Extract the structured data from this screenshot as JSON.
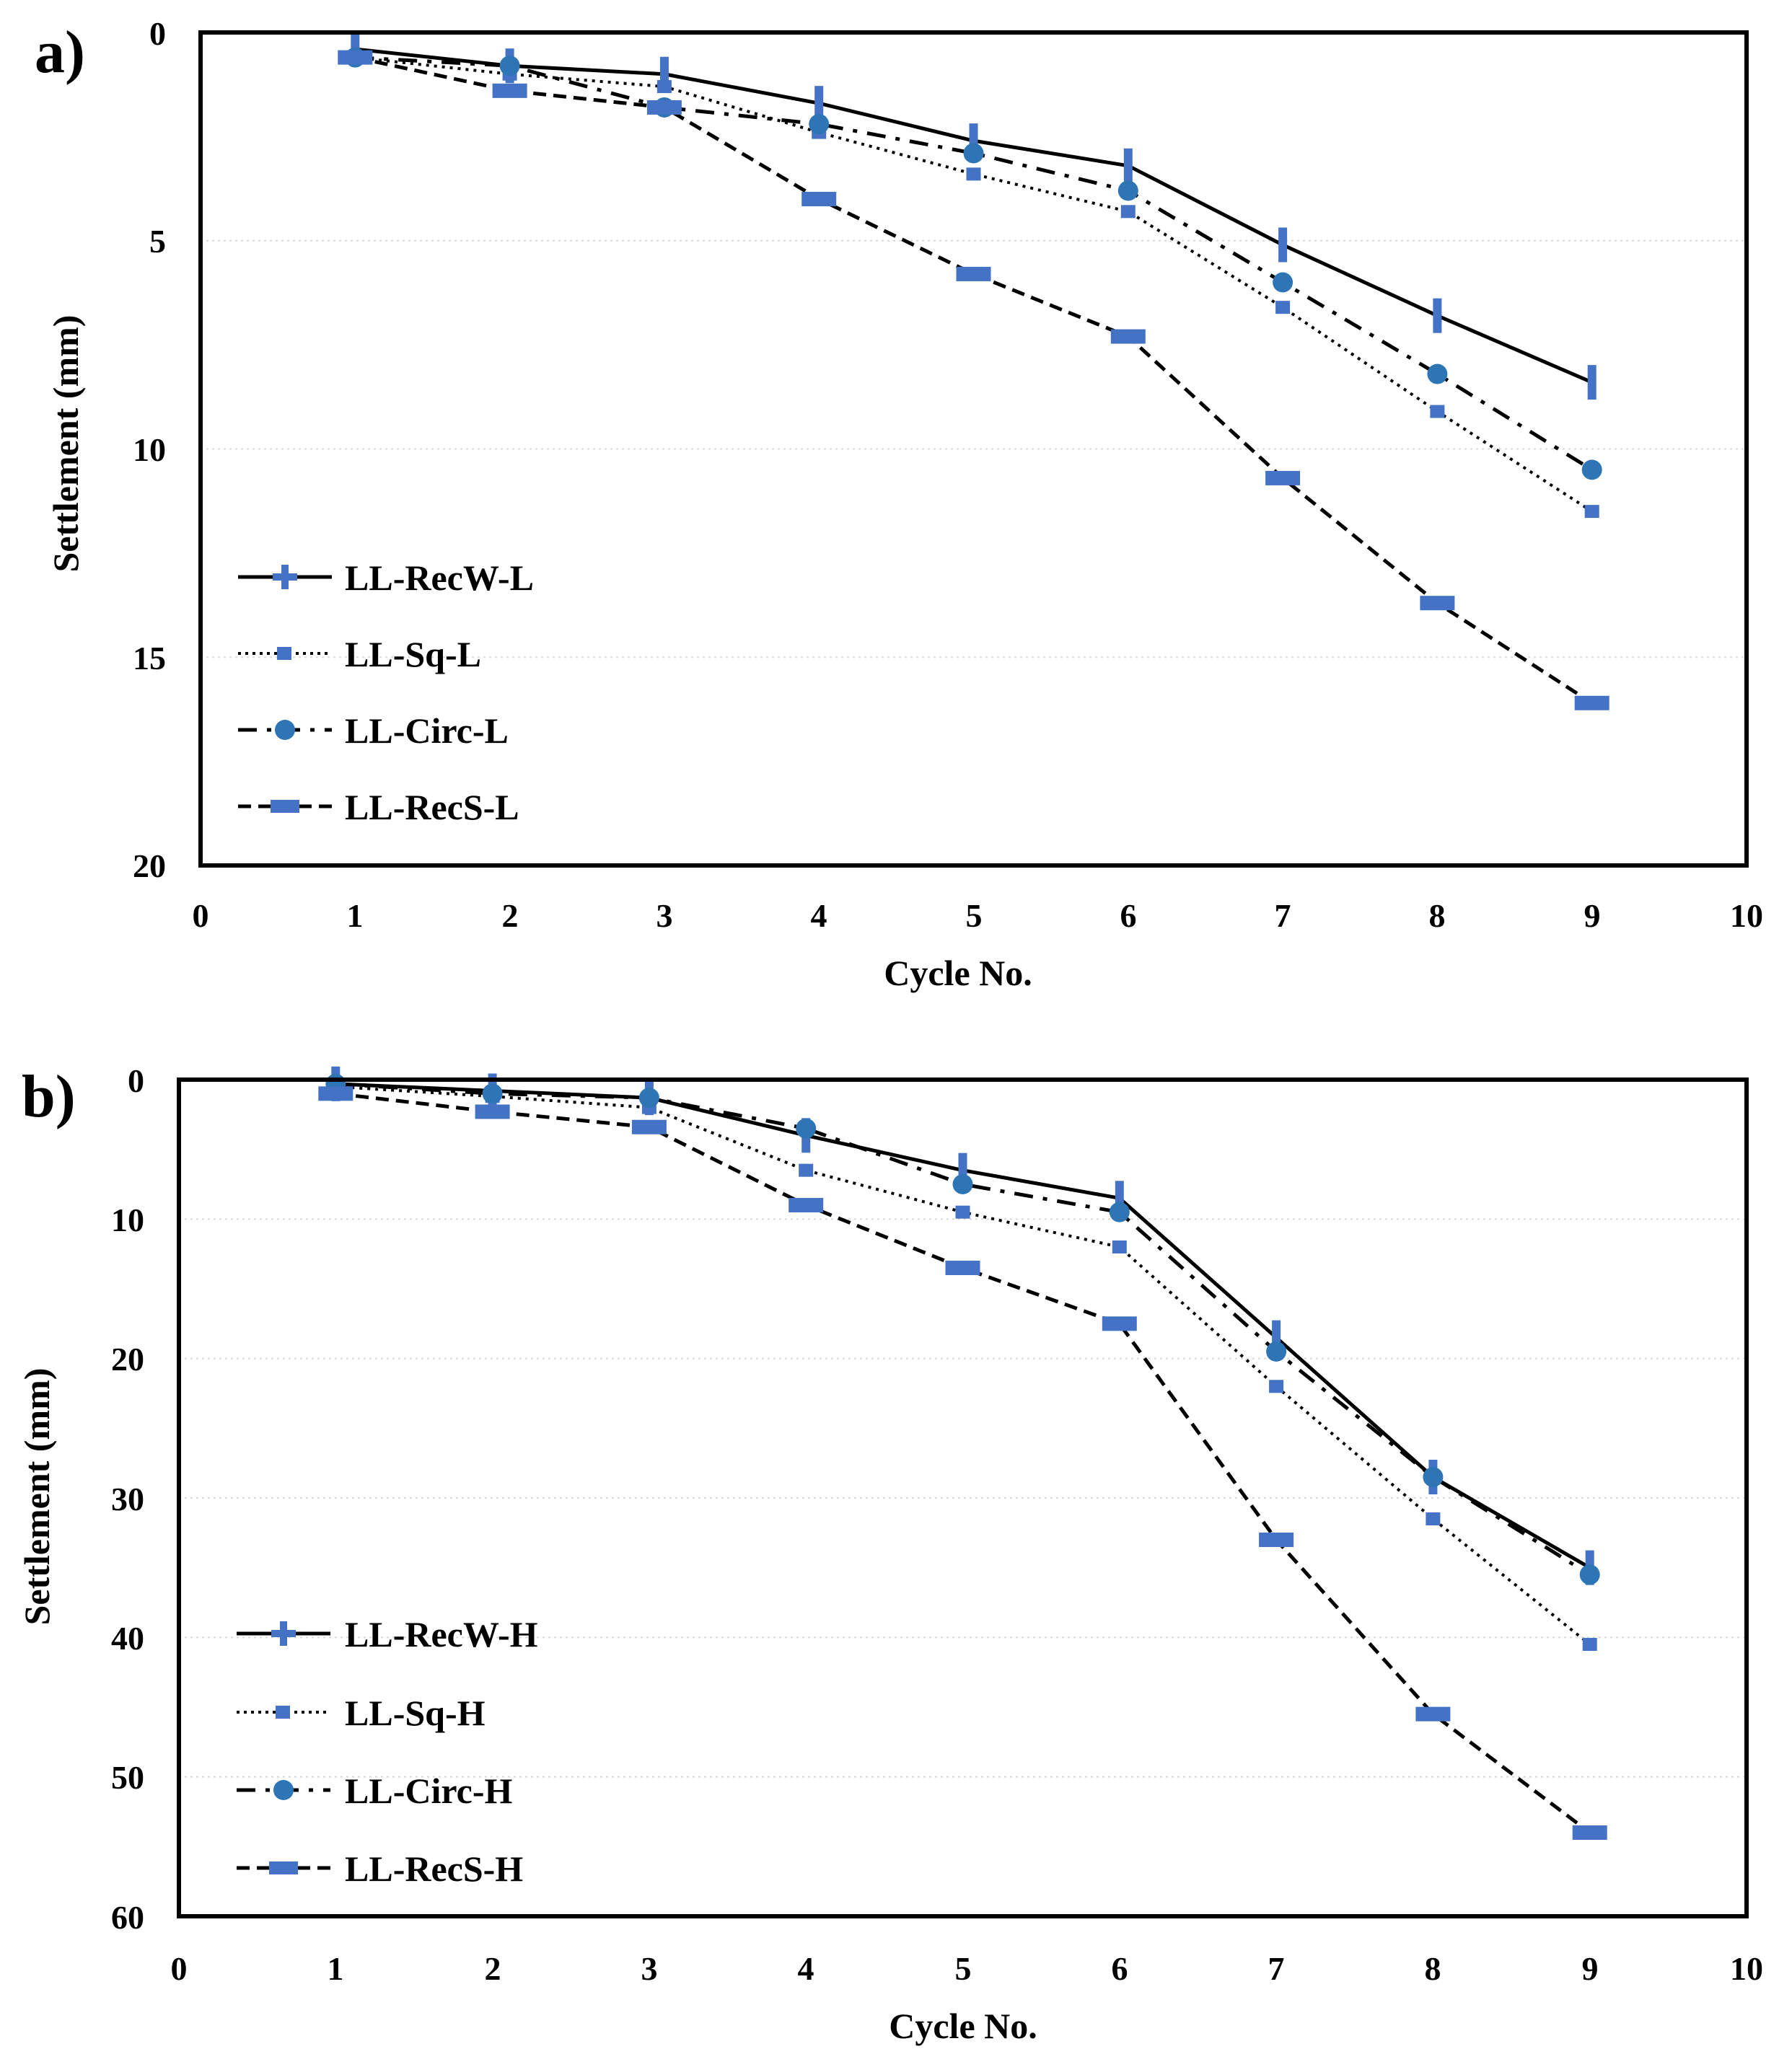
{
  "chart_data": [
    {
      "type": "line",
      "panel_label": "a)",
      "title": "",
      "xlabel": "Cycle No.",
      "ylabel": "Settlement (mm)",
      "xlim": [
        0,
        10
      ],
      "ylim": [
        0,
        20
      ],
      "y_inverted": true,
      "grid": true,
      "legend_position": "bottom-left",
      "x_ticks": [
        "0",
        "1",
        "2",
        "3",
        "4",
        "5",
        "6",
        "7",
        "8",
        "9",
        "10"
      ],
      "y_ticks": [
        "0",
        "5",
        "10",
        "15",
        "20"
      ],
      "x": [
        1,
        2,
        3,
        4,
        5,
        6,
        7,
        8,
        9
      ],
      "series": [
        {
          "name": "LL-RecW-L",
          "style": "solid",
          "marker": "plus",
          "values": [
            0.4,
            0.8,
            1.0,
            1.7,
            2.6,
            3.2,
            5.1,
            6.8,
            8.4
          ]
        },
        {
          "name": "LL-Sq-L",
          "style": "dotted",
          "marker": "square",
          "values": [
            0.6,
            1.0,
            1.3,
            2.4,
            3.4,
            4.3,
            6.6,
            9.1,
            11.5
          ]
        },
        {
          "name": "LL-Circ-L",
          "style": "dashdot",
          "marker": "circle",
          "values": [
            0.6,
            0.8,
            1.8,
            2.2,
            2.9,
            3.8,
            6.0,
            8.2,
            10.5
          ]
        },
        {
          "name": "LL-RecS-L",
          "style": "dashed",
          "marker": "dash",
          "values": [
            0.6,
            1.4,
            1.8,
            4.0,
            5.8,
            7.3,
            10.7,
            13.7,
            16.1
          ]
        }
      ]
    },
    {
      "type": "line",
      "panel_label": "b)",
      "title": "",
      "xlabel": "Cycle No.",
      "ylabel": "Settlement (mm)",
      "xlim": [
        0,
        10
      ],
      "ylim": [
        0,
        60
      ],
      "y_inverted": true,
      "grid": true,
      "legend_position": "bottom-left",
      "x_ticks": [
        "0",
        "1",
        "2",
        "3",
        "4",
        "5",
        "6",
        "7",
        "8",
        "9",
        "10"
      ],
      "y_ticks": [
        "0",
        "10",
        "20",
        "30",
        "40",
        "50",
        "60"
      ],
      "x": [
        1,
        2,
        3,
        4,
        5,
        6,
        7,
        8,
        9
      ],
      "series": [
        {
          "name": "LL-RecW-H",
          "style": "solid",
          "marker": "plus",
          "values": [
            0.3,
            0.8,
            1.3,
            4.0,
            6.5,
            8.5,
            18.5,
            28.5,
            35.0
          ]
        },
        {
          "name": "LL-Sq-H",
          "style": "dotted",
          "marker": "square",
          "values": [
            0.5,
            1.2,
            2.0,
            6.5,
            9.5,
            12.0,
            22.0,
            31.5,
            40.5
          ]
        },
        {
          "name": "LL-Circ-H",
          "style": "dashdot",
          "marker": "circle",
          "values": [
            0.3,
            1.0,
            1.3,
            3.5,
            7.5,
            9.5,
            19.5,
            28.5,
            35.5
          ]
        },
        {
          "name": "LL-RecS-H",
          "style": "dashed",
          "marker": "dash",
          "values": [
            1.0,
            2.3,
            3.4,
            9.0,
            13.5,
            17.5,
            33.0,
            45.5,
            54.0
          ]
        }
      ]
    }
  ],
  "colors": {
    "marker": "#4472C4",
    "marker_circle": "#2E75B6",
    "line": "#000000",
    "grid": "#d9d9d9"
  }
}
